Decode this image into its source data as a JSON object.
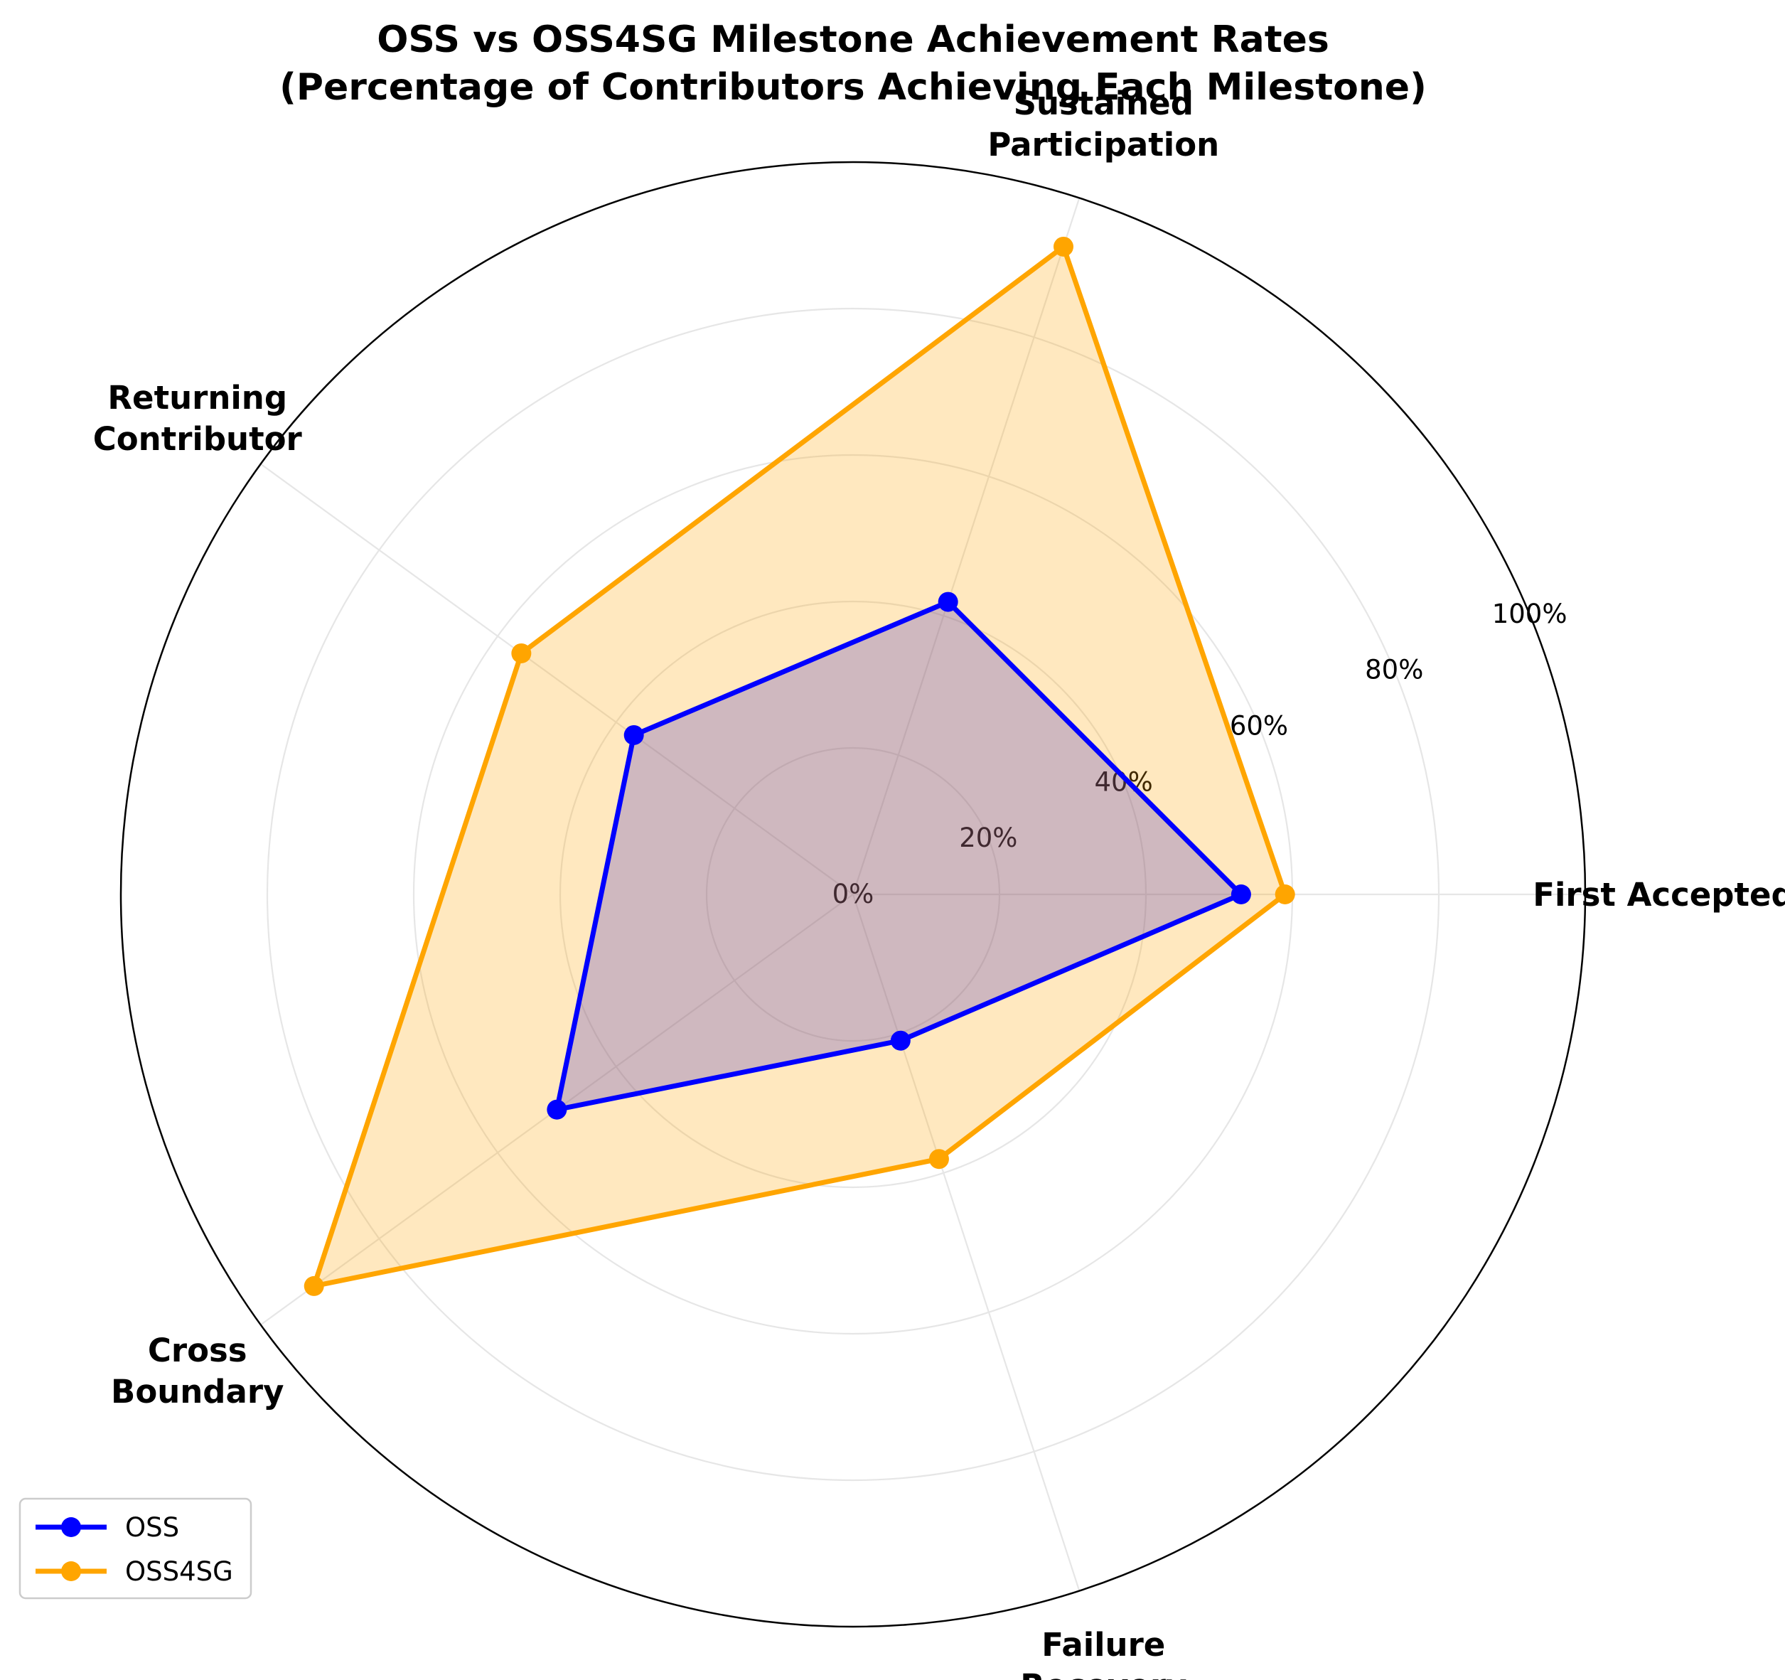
{
  "chart_data": {
    "type": "radar",
    "title": [
      "OSS vs OSS4SG Milestone Achievement Rates",
      "(Percentage of Contributors Achieving Each Milestone)"
    ],
    "categories": [
      [
        "First Accepted"
      ],
      [
        "Sustained",
        "Participation"
      ],
      [
        "Returning",
        "Contributor"
      ],
      [
        "Cross",
        "Boundary"
      ],
      [
        "Failure",
        "Recovery"
      ]
    ],
    "rlim": [
      0,
      100
    ],
    "rticks": [
      0,
      20,
      40,
      60,
      80,
      100
    ],
    "rtick_labels": [
      "0%",
      "20%",
      "40%",
      "60%",
      "80%",
      "100%"
    ],
    "grid": true,
    "legend_position": "lower-left",
    "series": [
      {
        "name": "OSS",
        "color": "#0000ff",
        "values": [
          53,
          42,
          37,
          50,
          21
        ]
      },
      {
        "name": "OSS4SG",
        "color": "#ffa500",
        "values": [
          59,
          93,
          56,
          91,
          38
        ]
      }
    ]
  }
}
